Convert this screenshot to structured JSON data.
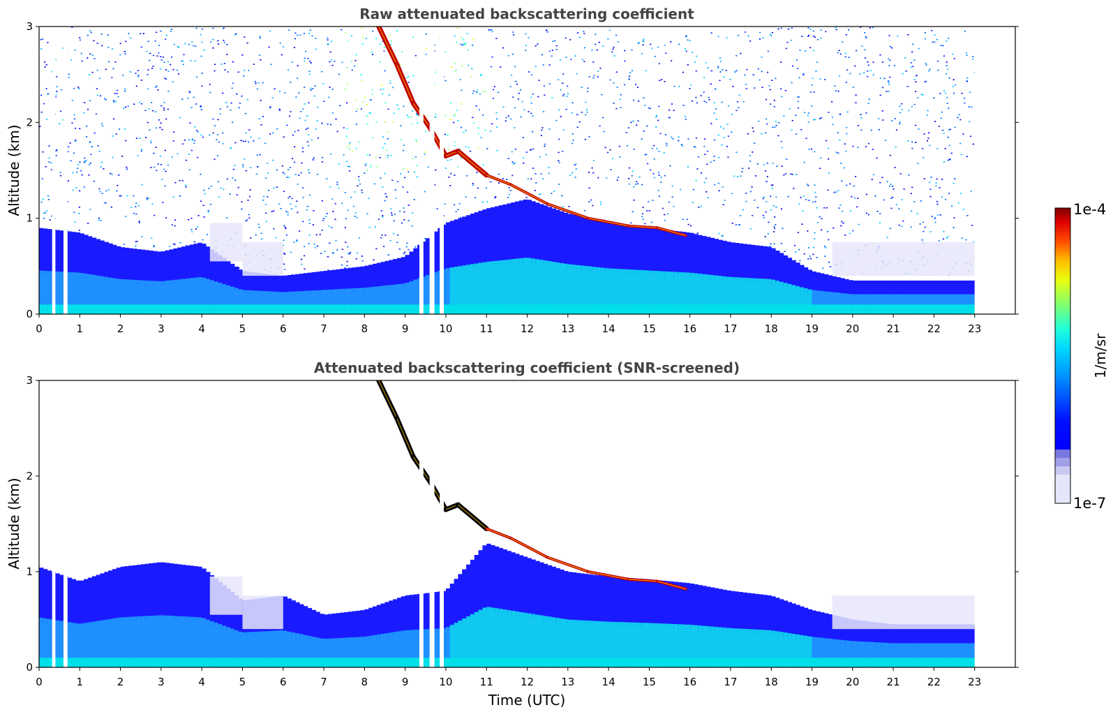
{
  "chart_data": [
    {
      "type": "heatmap",
      "title": "Raw attenuated backscattering coefficient",
      "xlabel": "",
      "ylabel": "Altitude (km)",
      "xlim": [
        0,
        24
      ],
      "ylim": [
        0,
        3
      ],
      "x_ticks": [
        "0",
        "1",
        "2",
        "3",
        "4",
        "5",
        "6",
        "7",
        "8",
        "9",
        "10",
        "11",
        "12",
        "13",
        "14",
        "15",
        "16",
        "17",
        "18",
        "19",
        "20",
        "21",
        "22",
        "23"
      ],
      "y_ticks": [
        "0",
        "1",
        "2",
        "3"
      ],
      "boundary_layer_top_km": [
        [
          0,
          0.9
        ],
        [
          1,
          0.85
        ],
        [
          2,
          0.7
        ],
        [
          3,
          0.65
        ],
        [
          4,
          0.75
        ],
        [
          5,
          0.45
        ],
        [
          6,
          0.4
        ],
        [
          7,
          0.45
        ],
        [
          8,
          0.5
        ],
        [
          9,
          0.6
        ],
        [
          10,
          0.95
        ],
        [
          11,
          1.1
        ],
        [
          12,
          1.2
        ],
        [
          13,
          1.05
        ],
        [
          14,
          0.95
        ],
        [
          15,
          0.9
        ],
        [
          16,
          0.85
        ],
        [
          17,
          0.75
        ],
        [
          18,
          0.7
        ],
        [
          19,
          0.45
        ],
        [
          20,
          0.35
        ],
        [
          21,
          0.35
        ],
        [
          22,
          0.35
        ],
        [
          23,
          0.35
        ]
      ],
      "cloud_layer_km": [
        [
          8.35,
          3.0
        ],
        [
          8.8,
          2.6
        ],
        [
          9.2,
          2.2
        ],
        [
          9.6,
          1.95
        ],
        [
          10.0,
          1.65
        ],
        [
          10.3,
          1.7
        ],
        [
          11.0,
          1.45
        ],
        [
          11.6,
          1.35
        ],
        [
          12.5,
          1.15
        ],
        [
          13.5,
          1.0
        ],
        [
          14.5,
          0.92
        ],
        [
          15.2,
          0.9
        ],
        [
          15.9,
          0.82
        ]
      ],
      "data_gaps_hours": [
        [
          0.32,
          0.4
        ],
        [
          0.6,
          0.7
        ],
        [
          9.35,
          9.45
        ],
        [
          9.6,
          9.72
        ],
        [
          9.85,
          9.95
        ]
      ],
      "noise": "high"
    },
    {
      "type": "heatmap",
      "title": "Attenuated backscattering coefficient (SNR-screened)",
      "xlabel": "Time (UTC)",
      "ylabel": "Altitude (km)",
      "xlim": [
        0,
        24
      ],
      "ylim": [
        0,
        3
      ],
      "x_ticks": [
        "0",
        "1",
        "2",
        "3",
        "4",
        "5",
        "6",
        "7",
        "8",
        "9",
        "10",
        "11",
        "12",
        "13",
        "14",
        "15",
        "16",
        "17",
        "18",
        "19",
        "20",
        "21",
        "22",
        "23"
      ],
      "y_ticks": [
        "0",
        "1",
        "2",
        "3"
      ],
      "boundary_layer_top_km": [
        [
          0,
          1.05
        ],
        [
          1,
          0.9
        ],
        [
          2,
          1.05
        ],
        [
          3,
          1.1
        ],
        [
          4,
          1.05
        ],
        [
          5,
          0.7
        ],
        [
          6,
          0.75
        ],
        [
          7,
          0.55
        ],
        [
          8,
          0.6
        ],
        [
          9,
          0.75
        ],
        [
          10,
          0.8
        ],
        [
          11,
          1.3
        ],
        [
          12,
          1.15
        ],
        [
          13,
          1.0
        ],
        [
          14,
          0.95
        ],
        [
          15,
          0.92
        ],
        [
          16,
          0.88
        ],
        [
          17,
          0.8
        ],
        [
          18,
          0.75
        ],
        [
          19,
          0.6
        ],
        [
          20,
          0.5
        ],
        [
          21,
          0.45
        ],
        [
          22,
          0.45
        ],
        [
          23,
          0.45
        ]
      ],
      "cloud_layer_km": [
        [
          8.35,
          3.0
        ],
        [
          8.8,
          2.6
        ],
        [
          9.2,
          2.2
        ],
        [
          9.6,
          1.95
        ],
        [
          10.0,
          1.65
        ],
        [
          10.3,
          1.7
        ],
        [
          11.0,
          1.45
        ],
        [
          11.6,
          1.35
        ],
        [
          12.5,
          1.15
        ],
        [
          13.5,
          1.0
        ],
        [
          14.5,
          0.92
        ],
        [
          15.2,
          0.9
        ],
        [
          15.9,
          0.82
        ]
      ],
      "data_gaps_hours": [
        [
          0.32,
          0.4
        ],
        [
          0.6,
          0.7
        ],
        [
          9.35,
          9.45
        ],
        [
          9.6,
          9.72
        ],
        [
          9.85,
          9.95
        ]
      ],
      "noise": "screened"
    }
  ],
  "colorbar": {
    "label": "1/m/sr",
    "max_label": "1e-4",
    "min_label": "1e-7",
    "range": [
      1e-07,
      0.0001
    ],
    "scale": "log",
    "colormap": "jet",
    "low_colors": [
      "#e6e6fa",
      "#c8c8f0",
      "#a0a0e8",
      "#7878e0"
    ]
  },
  "data_end_hour": 23
}
